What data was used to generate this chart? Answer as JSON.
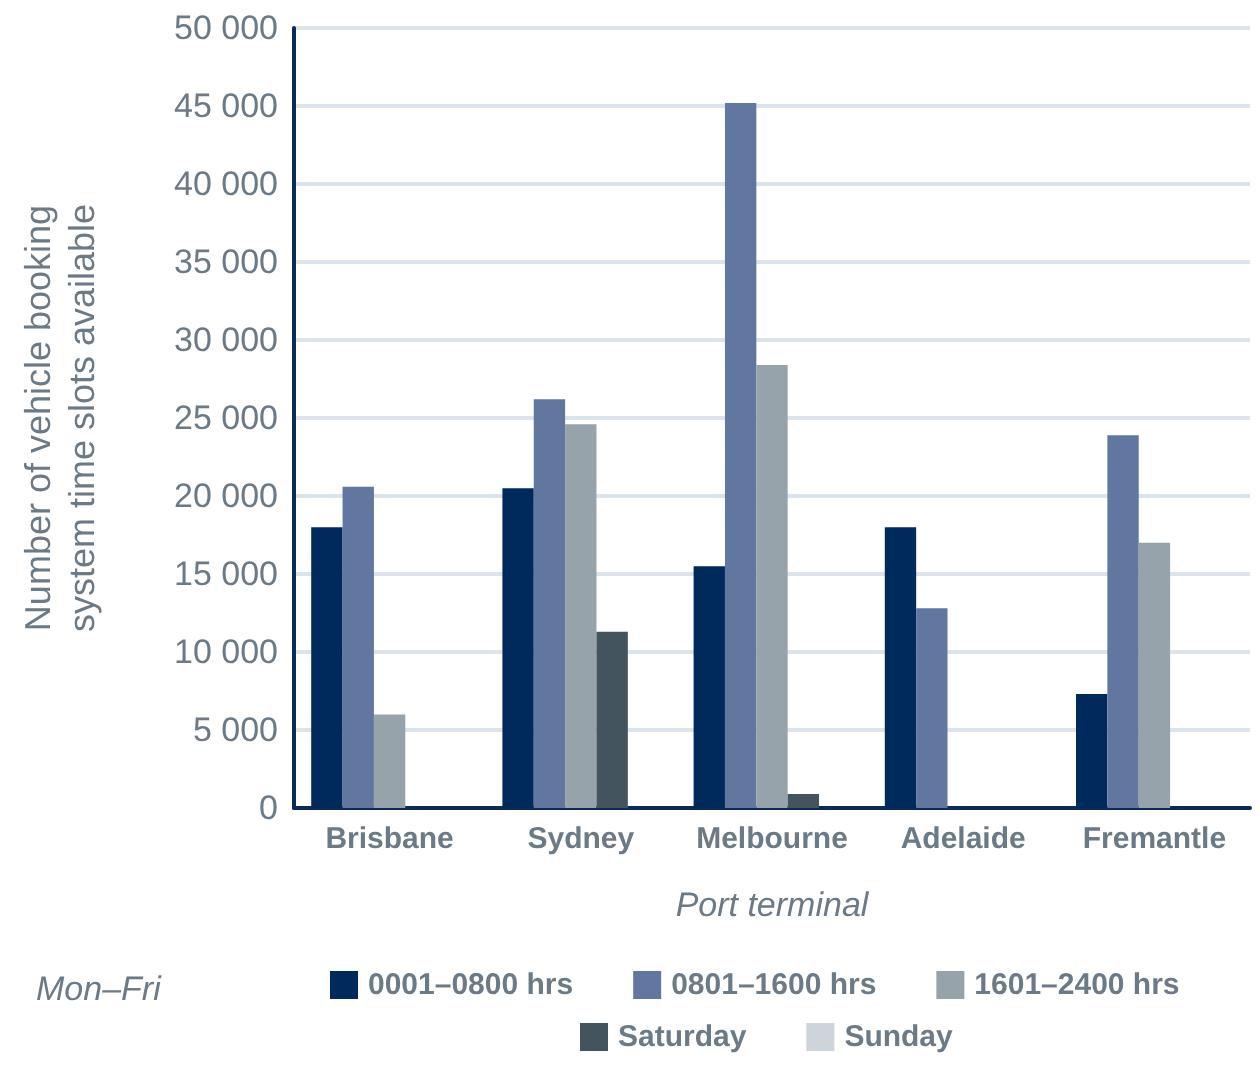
{
  "chart_data": {
    "type": "bar",
    "xlabel": "Port terminal",
    "ylabel": "Number of vehicle booking\nsystem time slots available",
    "legend_title": "Mon–Fri",
    "categories": [
      "Brisbane",
      "Sydney",
      "Melbourne",
      "Adelaide",
      "Fremantle"
    ],
    "series": [
      {
        "name": "0001–0800 hrs",
        "color": "#002a5c",
        "values": [
          18000,
          20500,
          15500,
          18000,
          7300
        ]
      },
      {
        "name": "0801–1600 hrs",
        "color": "#61779f",
        "values": [
          20600,
          26200,
          45200,
          12800,
          23900
        ]
      },
      {
        "name": "1601–2400 hrs",
        "color": "#97a3ab",
        "values": [
          6000,
          24600,
          28400,
          0,
          17000
        ]
      },
      {
        "name": "Saturday",
        "color": "#44545f",
        "values": [
          0,
          11300,
          900,
          0,
          0
        ]
      },
      {
        "name": "Sunday",
        "color": "#cdd4da",
        "values": [
          0,
          0,
          0,
          0,
          0
        ]
      }
    ],
    "ylim": [
      0,
      50000
    ],
    "yticks": [
      0,
      {
        "value": 5000,
        "label": "5 000"
      },
      {
        "value": 10000,
        "label": "10 000"
      },
      {
        "value": 15000,
        "label": "15 000"
      },
      {
        "value": 20000,
        "label": "20 000"
      },
      {
        "value": 25000,
        "label": "25 000"
      },
      {
        "value": 30000,
        "label": "30 000"
      },
      {
        "value": 35000,
        "label": "35 000"
      },
      {
        "value": 40000,
        "label": "40 000"
      },
      {
        "value": 45000,
        "label": "45 000"
      },
      {
        "value": 50000,
        "label": "50 000"
      }
    ],
    "grid": "y",
    "legend": "bottom"
  }
}
